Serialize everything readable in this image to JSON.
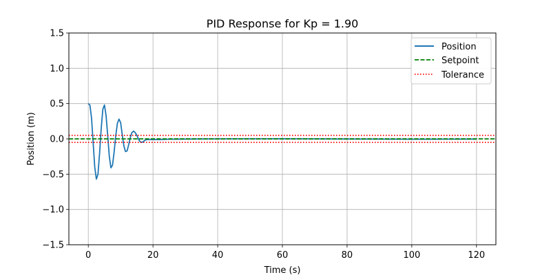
{
  "chart_data": {
    "type": "line",
    "title": "PID Response for Kp = 1.90",
    "xlabel": "Time (s)",
    "ylabel": "Position (m)",
    "xlim": [
      -6,
      126
    ],
    "ylim": [
      -1.5,
      1.5
    ],
    "xticks": [
      0,
      20,
      40,
      60,
      80,
      100,
      120
    ],
    "xtick_labels": [
      "0",
      "20",
      "40",
      "60",
      "80",
      "100",
      "120"
    ],
    "yticks": [
      -1.5,
      -1.0,
      -0.5,
      0.0,
      0.5,
      1.0,
      1.5
    ],
    "ytick_labels": [
      "−1.5",
      "−1.0",
      "−0.5",
      "0.0",
      "0.5",
      "1.0",
      "1.5"
    ],
    "grid": true,
    "legend_position": "top-right",
    "series": [
      {
        "name": "Position",
        "style": "solid",
        "color": "#1f77b4",
        "x": [
          0,
          0.5,
          1,
          1.5,
          2,
          2.5,
          3,
          3.5,
          4,
          4.5,
          5,
          5.5,
          6,
          6.5,
          7,
          7.5,
          8,
          8.5,
          9,
          9.5,
          10,
          10.5,
          11,
          11.5,
          12,
          12.5,
          13,
          13.5,
          14,
          14.5,
          15,
          15.5,
          16,
          16.5,
          17,
          17.5,
          18,
          19,
          20,
          22,
          25,
          30,
          40,
          50,
          60,
          70,
          80,
          90,
          100,
          110,
          120
        ],
        "y": [
          0.5,
          0.48,
          0.3,
          -0.05,
          -0.4,
          -0.57,
          -0.5,
          -0.2,
          0.15,
          0.42,
          0.48,
          0.33,
          0.05,
          -0.25,
          -0.41,
          -0.37,
          -0.18,
          0.05,
          0.22,
          0.28,
          0.23,
          0.06,
          -0.1,
          -0.18,
          -0.17,
          -0.08,
          0.02,
          0.09,
          0.11,
          0.09,
          0.05,
          0.0,
          -0.04,
          -0.05,
          -0.04,
          -0.02,
          -0.01,
          -0.01,
          -0.01,
          -0.01,
          -0.005,
          -0.003,
          0.0,
          0.001,
          0.002,
          0.0,
          -0.002,
          -0.003,
          -0.005,
          -0.004,
          -0.003
        ]
      },
      {
        "name": "Setpoint",
        "style": "dashed",
        "color": "#008000",
        "y_const": 0.0
      },
      {
        "name": "Tolerance",
        "style": "dotted",
        "color": "#ff0000",
        "y_const": [
          0.05,
          -0.05
        ]
      }
    ]
  }
}
